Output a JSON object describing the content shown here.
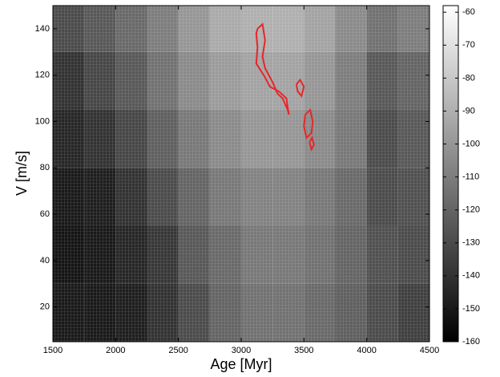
{
  "chart_data": {
    "type": "heatmap",
    "xlabel": "Age [Myr]",
    "ylabel": "V [m/s]",
    "x_edges": [
      1500,
      1750,
      2000,
      2250,
      2500,
      2750,
      3000,
      3250,
      3500,
      3750,
      4000,
      4250,
      4500
    ],
    "y_edges": [
      5,
      30,
      55,
      80,
      105,
      130,
      150
    ],
    "z": [
      [
        -150,
        -150,
        -148,
        -140,
        -130,
        -120,
        -115,
        -115,
        -118,
        -122,
        -130,
        -135
      ],
      [
        -152,
        -150,
        -145,
        -138,
        -125,
        -118,
        -112,
        -112,
        -115,
        -120,
        -128,
        -130
      ],
      [
        -150,
        -148,
        -140,
        -130,
        -120,
        -112,
        -108,
        -108,
        -112,
        -118,
        -130,
        -128
      ],
      [
        -145,
        -140,
        -132,
        -122,
        -112,
        -105,
        -100,
        -100,
        -105,
        -112,
        -130,
        -125
      ],
      [
        -140,
        -132,
        -125,
        -115,
        -105,
        -98,
        -95,
        -95,
        -100,
        -110,
        -125,
        -120
      ],
      [
        -130,
        -125,
        -118,
        -110,
        -100,
        -92,
        -90,
        -90,
        -95,
        -105,
        -115,
        -110
      ]
    ],
    "xlim": [
      1500,
      4500
    ],
    "ylim": [
      5,
      150
    ],
    "xticks": [
      1500,
      2000,
      2500,
      3000,
      3500,
      4000,
      4500
    ],
    "yticks": [
      20,
      40,
      60,
      80,
      100,
      120,
      140
    ],
    "clim": [
      -160,
      -58
    ],
    "cticks": [
      -60,
      -70,
      -80,
      -90,
      -100,
      -110,
      -120,
      -130,
      -140,
      -150,
      -160
    ],
    "contour": {
      "color": "#e8262a",
      "x": [
        3130,
        3170,
        3190,
        3170,
        3190,
        3250,
        3290,
        3330,
        3370,
        3380,
        3360,
        3300,
        3230,
        3180,
        3120,
        3130,
        3120,
        3130,
        null,
        3440,
        3470,
        3500,
        3480,
        3450,
        3440,
        null,
        3510,
        3550,
        3570,
        3560,
        3520,
        3500,
        3510,
        null,
        3545,
        3565,
        3580,
        3560,
        3545
      ],
      "y": [
        140,
        142,
        135,
        128,
        123,
        117,
        112,
        110,
        105,
        103,
        110,
        113,
        115,
        120,
        125,
        132,
        138,
        140,
        null,
        116,
        118,
        115,
        111,
        113,
        116,
        null,
        103,
        105,
        100,
        95,
        93,
        98,
        103,
        null,
        91,
        93,
        90,
        88,
        91
      ]
    }
  }
}
